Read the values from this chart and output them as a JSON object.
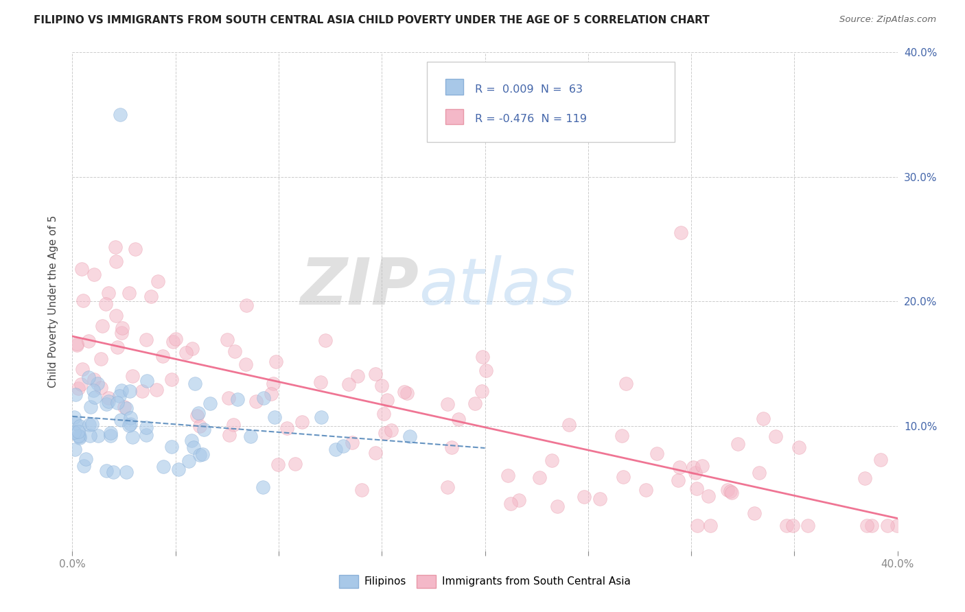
{
  "title": "FILIPINO VS IMMIGRANTS FROM SOUTH CENTRAL ASIA CHILD POVERTY UNDER THE AGE OF 5 CORRELATION CHART",
  "source": "Source: ZipAtlas.com",
  "ylabel": "Child Poverty Under the Age of 5",
  "xlim": [
    0.0,
    0.4
  ],
  "ylim": [
    0.0,
    0.4
  ],
  "xtick_positions": [
    0.0,
    0.05,
    0.1,
    0.15,
    0.2,
    0.25,
    0.3,
    0.35,
    0.4
  ],
  "yticks_right": [
    0.1,
    0.2,
    0.3,
    0.4
  ],
  "ytick_right_labels": [
    "10.0%",
    "20.0%",
    "30.0%",
    "40.0%"
  ],
  "filipino_color": "#a8c8e8",
  "asian_color": "#f4b8c8",
  "trend_filipino_color": "#5588bb",
  "trend_asian_color": "#ee6688",
  "legend_r_filipino": "R =  0.009",
  "legend_n_filipino": "N =  63",
  "legend_r_asian": "R = -0.476",
  "legend_n_asian": "N = 119",
  "legend_label_filipino": "Filipinos",
  "legend_label_asian": "Immigrants from South Central Asia",
  "background_color": "#ffffff",
  "grid_color": "#cccccc",
  "text_color": "#4466aa",
  "title_color": "#222222"
}
